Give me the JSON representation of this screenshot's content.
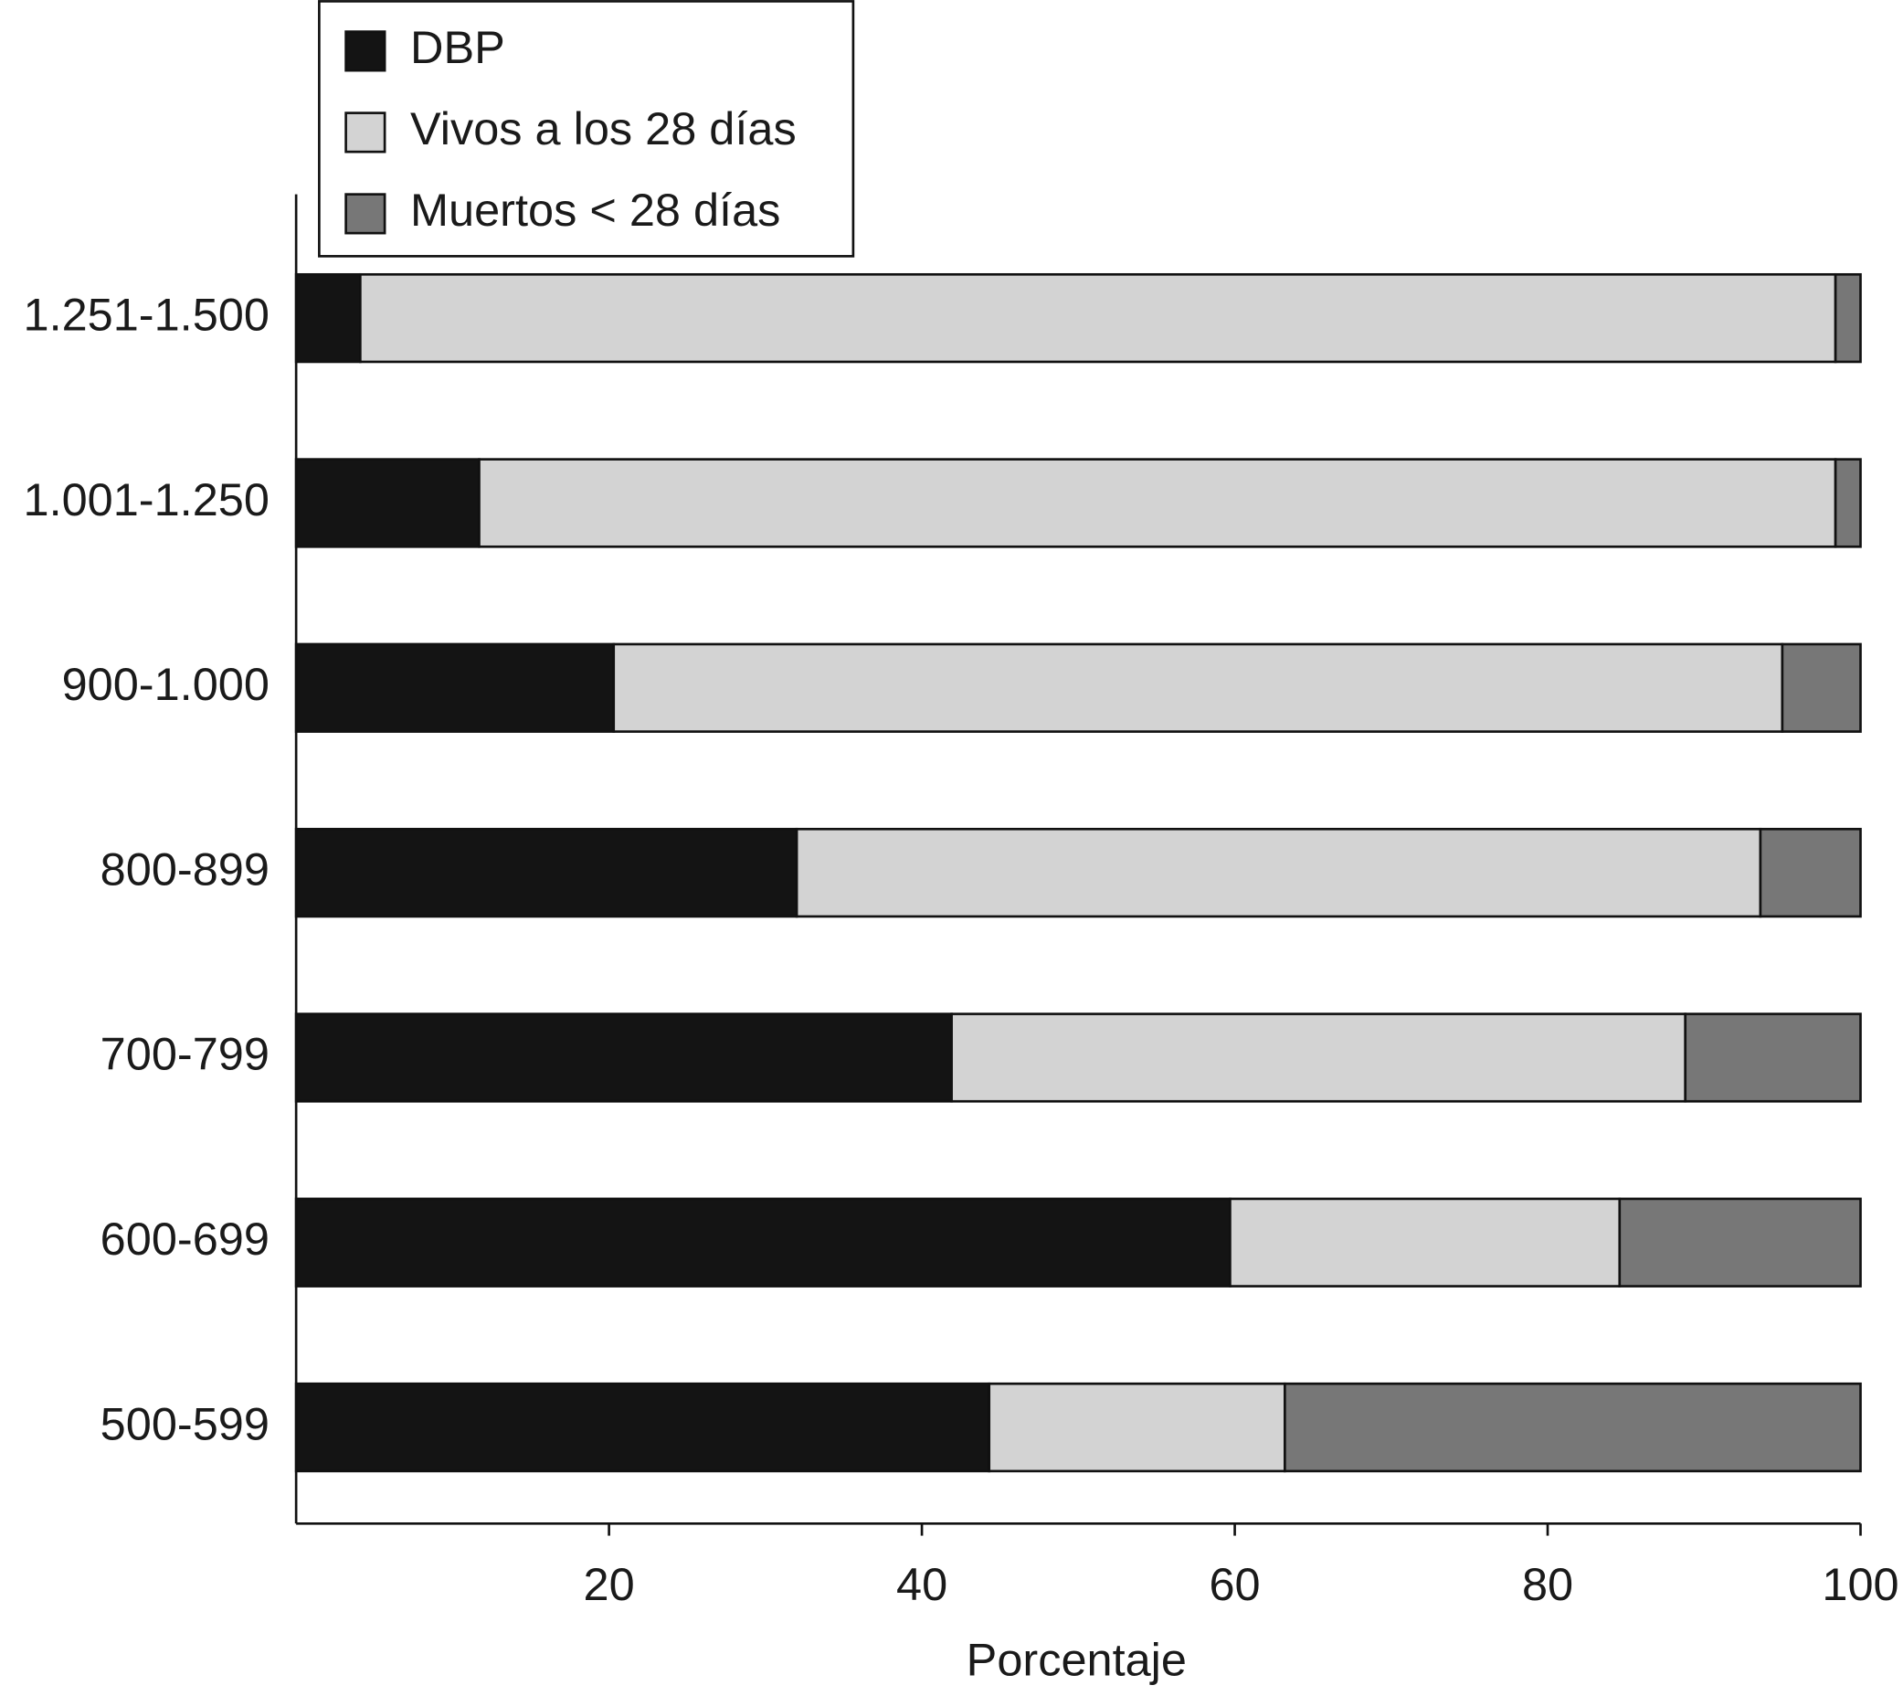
{
  "chart_data": {
    "type": "stacked-barh",
    "xlabel": "Porcentaje",
    "categories": [
      "1.251-1.500",
      "1.001-1.250",
      "900-1.000",
      "800-899",
      "700-799",
      "600-699",
      "500-599"
    ],
    "series": [
      {
        "name": "DBP",
        "color": "#141414",
        "values": [
          4.1,
          11.7,
          20.3,
          32.0,
          41.9,
          59.7,
          44.3
        ]
      },
      {
        "name": "Vivos a los 28 días",
        "color": "#d3d3d3",
        "values": [
          94.3,
          86.7,
          74.7,
          61.6,
          46.9,
          24.9,
          18.9
        ]
      },
      {
        "name": "Muertos < 28 días",
        "color": "#777777",
        "values": [
          1.6,
          1.6,
          5.0,
          6.4,
          11.2,
          15.4,
          36.8
        ]
      }
    ],
    "xlim": [
      0,
      100
    ],
    "xticks": [
      20,
      40,
      60,
      80,
      100
    ],
    "legend": "top-left"
  }
}
